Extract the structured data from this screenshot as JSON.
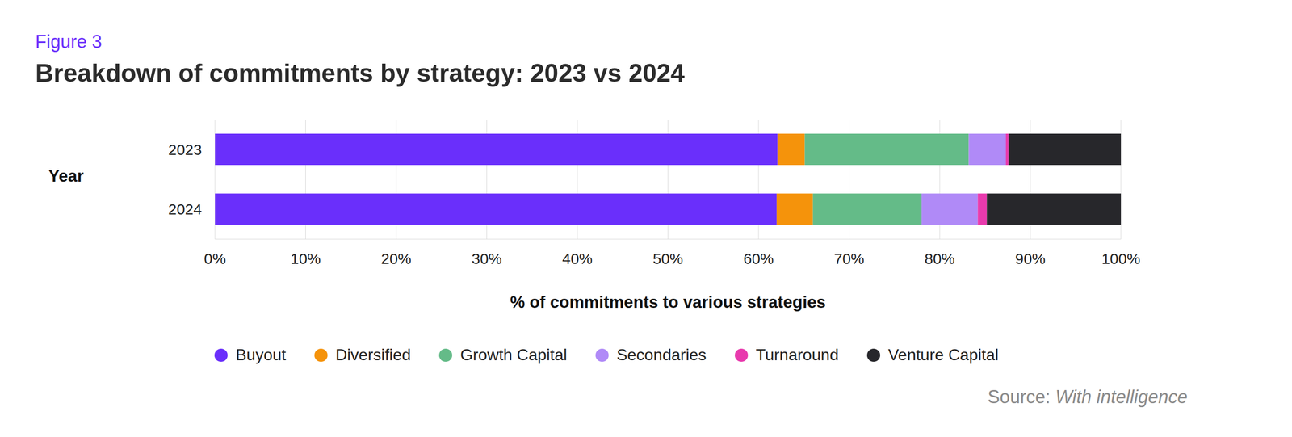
{
  "chart_data": {
    "type": "bar",
    "figure_label": "Figure 3",
    "title": "Breakdown of commitments by strategy: 2023 vs 2024",
    "y_label": "Year",
    "x_label": "% of commitments to various strategies",
    "source_label": "Source:",
    "source": "With intelligence",
    "orientation": "horizontal",
    "stacked": true,
    "grid": true,
    "legend": "bottom",
    "categories": [
      "2023",
      "2024"
    ],
    "series": [
      {
        "name": "Buyout",
        "color": "#6a2ffb",
        "values": [
          62.1,
          62.0
        ]
      },
      {
        "name": "Diversified",
        "color": "#f5930b",
        "values": [
          3.0,
          4.0
        ]
      },
      {
        "name": "Growth Capital",
        "color": "#64bb88",
        "values": [
          18.1,
          12.0
        ]
      },
      {
        "name": "Secondaries",
        "color": "#b08af7",
        "values": [
          4.1,
          6.2
        ]
      },
      {
        "name": "Turnaround",
        "color": "#e83aad",
        "values": [
          0.3,
          1.0
        ]
      },
      {
        "name": "Venture Capital",
        "color": "#27272b",
        "values": [
          12.4,
          14.8
        ]
      }
    ],
    "xlim": [
      0,
      100
    ],
    "xticks": [
      {
        "value": 0,
        "label": "0%"
      },
      {
        "value": 10,
        "label": "10%"
      },
      {
        "value": 20,
        "label": "20%"
      },
      {
        "value": 30,
        "label": "30%"
      },
      {
        "value": 40,
        "label": "40%"
      },
      {
        "value": 50,
        "label": "50%"
      },
      {
        "value": 60,
        "label": "60%"
      },
      {
        "value": 70,
        "label": "70%"
      },
      {
        "value": 80,
        "label": "80%"
      },
      {
        "value": 90,
        "label": "90%"
      },
      {
        "value": 100,
        "label": "100%"
      }
    ]
  }
}
